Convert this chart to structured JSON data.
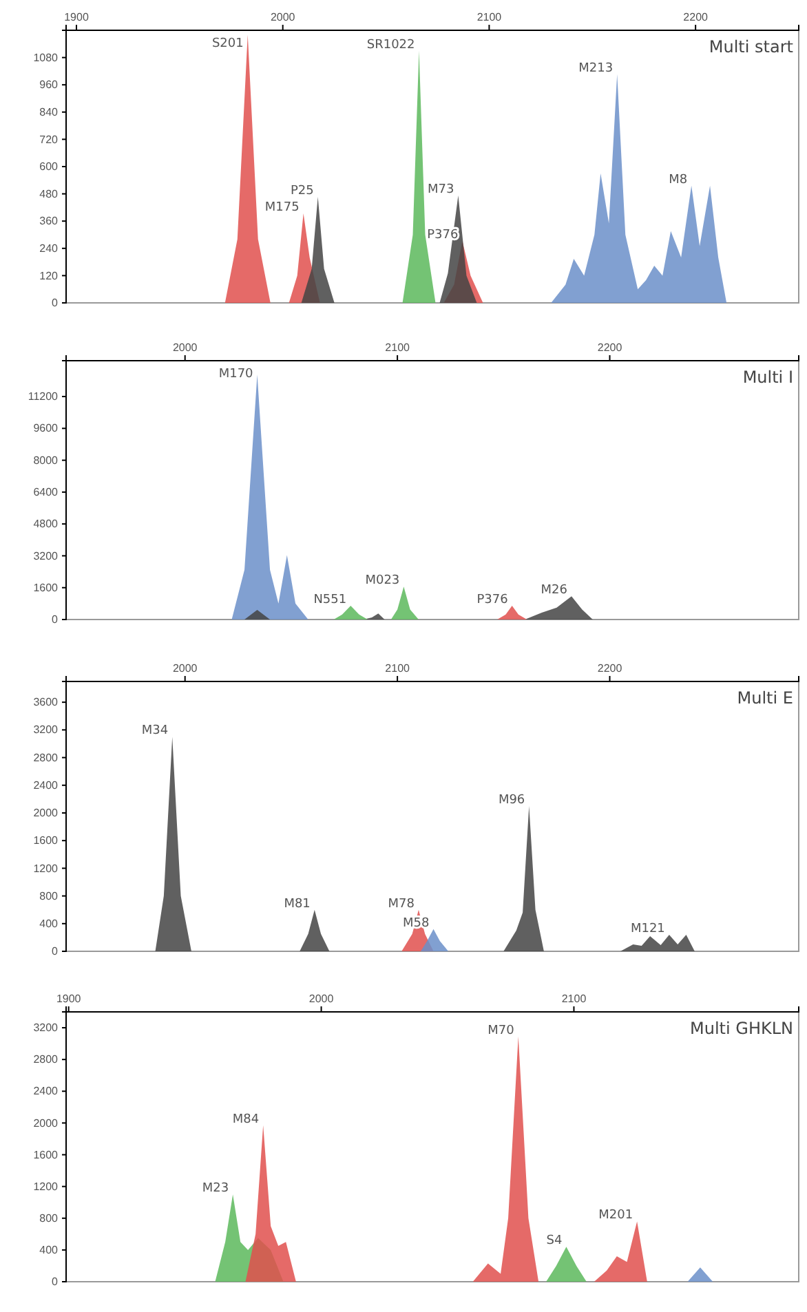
{
  "chart_data": [
    {
      "type": "area",
      "title": "Multi start",
      "xlim": [
        1895,
        2250
      ],
      "xticks": [
        1900,
        2000,
        2100,
        2200
      ],
      "ylim": [
        0,
        1200
      ],
      "yticks": [
        0,
        120,
        240,
        360,
        480,
        600,
        720,
        840,
        960,
        1080
      ],
      "series": [
        {
          "color": "#e0504e",
          "x": [
            1895,
            1972,
            1978,
            1983,
            1988,
            1994,
            2003,
            2007,
            2010,
            2013,
            2018,
            2078,
            2083,
            2087,
            2091,
            2097,
            2250
          ],
          "values": [
            0,
            0,
            280,
            1180,
            280,
            0,
            0,
            120,
            394,
            200,
            0,
            0,
            80,
            273,
            120,
            0,
            0
          ]
        },
        {
          "color": "#444444",
          "x": [
            1895,
            2009,
            2014,
            2017,
            2020,
            2025,
            2076,
            2080,
            2085,
            2089,
            2094,
            2250
          ],
          "values": [
            0,
            0,
            150,
            467,
            150,
            0,
            0,
            130,
            473,
            120,
            0,
            0
          ]
        },
        {
          "color": "#5cb85c",
          "x": [
            1895,
            2058,
            2063,
            2066,
            2069,
            2074,
            2250
          ],
          "values": [
            0,
            0,
            300,
            1110,
            300,
            0,
            0
          ]
        },
        {
          "color": "#6b8fc9",
          "x": [
            1895,
            2130,
            2137,
            2141,
            2146,
            2151,
            2154,
            2158,
            2162,
            2166,
            2172,
            2176,
            2180,
            2184,
            2188,
            2193,
            2198,
            2202,
            2207,
            2211,
            2215,
            2250
          ],
          "values": [
            0,
            0,
            80,
            194,
            120,
            300,
            570,
            350,
            1007,
            300,
            60,
            100,
            164,
            120,
            316,
            200,
            516,
            250,
            516,
            200,
            0,
            0
          ]
        }
      ],
      "annotations": [
        {
          "text": "S201",
          "x": 1983,
          "y": 1180
        },
        {
          "text": "M175",
          "x": 2010,
          "y": 394
        },
        {
          "text": "P25",
          "x": 2017,
          "y": 467
        },
        {
          "text": "SR1022",
          "x": 2066,
          "y": 1110
        },
        {
          "text": "M73",
          "x": 2085,
          "y": 473
        },
        {
          "text": "P376",
          "x": 2087,
          "y": 273
        },
        {
          "text": "M213",
          "x": 2162,
          "y": 1007
        },
        {
          "text": "M8",
          "x": 2198,
          "y": 516
        }
      ]
    },
    {
      "type": "area",
      "title": "Multi I",
      "xlim": [
        1944,
        2289
      ],
      "xticks": [
        2000,
        2100,
        2200
      ],
      "ylim": [
        0,
        13000
      ],
      "yticks": [
        0,
        1600,
        3200,
        4800,
        6400,
        8000,
        9600,
        11200
      ],
      "series": [
        {
          "color": "#6b8fc9",
          "x": [
            1944,
            2022,
            2028,
            2034,
            2040,
            2044,
            2048,
            2052,
            2058,
            2289
          ],
          "values": [
            0,
            0,
            2500,
            12300,
            2500,
            800,
            3230,
            800,
            0,
            0
          ]
        },
        {
          "color": "#444444",
          "x": [
            1944,
            2028,
            2034,
            2040,
            2084,
            2088,
            2091,
            2094,
            2160,
            2168,
            2175,
            2182,
            2187,
            2192,
            2289
          ],
          "values": [
            0,
            0,
            480,
            0,
            0,
            100,
            300,
            0,
            0,
            350,
            600,
            1170,
            500,
            0,
            0
          ]
        },
        {
          "color": "#5cb85c",
          "x": [
            1944,
            2070,
            2074,
            2078,
            2082,
            2086,
            2097,
            2100,
            2103,
            2106,
            2110,
            2289
          ],
          "values": [
            0,
            0,
            250,
            690,
            250,
            0,
            0,
            500,
            1650,
            500,
            0,
            0
          ]
        },
        {
          "color": "#e0504e",
          "x": [
            1944,
            2147,
            2151,
            2154,
            2157,
            2161,
            2289
          ],
          "values": [
            0,
            0,
            250,
            690,
            250,
            0,
            0
          ]
        }
      ],
      "annotations": [
        {
          "text": "M170",
          "x": 2034,
          "y": 12300
        },
        {
          "text": "N551",
          "x": 2078,
          "y": 690
        },
        {
          "text": "M023",
          "x": 2103,
          "y": 1650
        },
        {
          "text": "P376",
          "x": 2154,
          "y": 690
        },
        {
          "text": "M26",
          "x": 2182,
          "y": 1170
        }
      ]
    },
    {
      "type": "area",
      "title": "Multi E",
      "xlim": [
        1944,
        2289
      ],
      "xticks": [
        2000,
        2100,
        2200
      ],
      "ylim": [
        0,
        3900
      ],
      "yticks": [
        0,
        400,
        800,
        1200,
        1600,
        2000,
        2400,
        2800,
        3200,
        3600
      ],
      "series": [
        {
          "color": "#444444",
          "x": [
            1944,
            1986,
            1990,
            1994,
            1998,
            2003,
            2054,
            2058,
            2061,
            2064,
            2068,
            2150,
            2156,
            2159,
            2162,
            2165,
            2169,
            2205,
            2211,
            2215,
            2219,
            2224,
            2228,
            2232,
            2236,
            2240,
            2289
          ],
          "values": [
            0,
            0,
            800,
            3100,
            800,
            0,
            0,
            250,
            600,
            250,
            0,
            0,
            300,
            560,
            2100,
            600,
            0,
            0,
            100,
            80,
            220,
            90,
            240,
            100,
            240,
            0,
            0
          ]
        },
        {
          "color": "#e0504e",
          "x": [
            1944,
            2102,
            2107,
            2110,
            2113,
            2117,
            2289
          ],
          "values": [
            0,
            0,
            250,
            600,
            250,
            0,
            0
          ]
        },
        {
          "color": "#6b8fc9",
          "x": [
            1944,
            2111,
            2114,
            2117,
            2120,
            2124,
            2289
          ],
          "values": [
            0,
            0,
            150,
            320,
            150,
            0,
            0
          ]
        }
      ],
      "annotations": [
        {
          "text": "M34",
          "x": 1994,
          "y": 3100
        },
        {
          "text": "M81",
          "x": 2061,
          "y": 600
        },
        {
          "text": "M78",
          "x": 2110,
          "y": 600
        },
        {
          "text": "M58",
          "x": 2117,
          "y": 320
        },
        {
          "text": "M96",
          "x": 2162,
          "y": 2100
        },
        {
          "text": "M121",
          "x": 2228,
          "y": 240
        }
      ]
    },
    {
      "type": "area",
      "title": "Multi GHKLN",
      "xlim": [
        1899,
        2189
      ],
      "xticks": [
        1900,
        2000,
        2100
      ],
      "ylim": [
        0,
        3400
      ],
      "yticks": [
        0,
        400,
        800,
        1200,
        1600,
        2000,
        2400,
        2800,
        3200
      ],
      "series": [
        {
          "color": "#5cb85c",
          "x": [
            1899,
            1958,
            1962,
            1965,
            1968,
            1971,
            1975,
            1980,
            1985,
            2089,
            2093,
            2097,
            2101,
            2105,
            2189
          ],
          "values": [
            0,
            0,
            500,
            1100,
            500,
            400,
            550,
            400,
            0,
            0,
            200,
            440,
            200,
            0,
            0
          ]
        },
        {
          "color": "#e0504e",
          "x": [
            1899,
            1970,
            1974,
            1977,
            1980,
            1983,
            1986,
            1990,
            2060,
            2066,
            2071,
            2074,
            2078,
            2082,
            2086,
            2108,
            2113,
            2117,
            2121,
            2125,
            2129,
            2189
          ],
          "values": [
            0,
            0,
            600,
            1970,
            700,
            450,
            500,
            0,
            0,
            230,
            100,
            800,
            3090,
            800,
            0,
            0,
            140,
            320,
            250,
            760,
            0,
            0
          ]
        },
        {
          "color": "#6b8fc9",
          "x": [
            1899,
            2145,
            2150,
            2155,
            2189
          ],
          "values": [
            0,
            0,
            180,
            0,
            0
          ]
        }
      ],
      "annotations": [
        {
          "text": "M23",
          "x": 1965,
          "y": 1100
        },
        {
          "text": "M84",
          "x": 1977,
          "y": 1970
        },
        {
          "text": "M70",
          "x": 2078,
          "y": 3090
        },
        {
          "text": "S4",
          "x": 2097,
          "y": 440
        },
        {
          "text": "M201",
          "x": 2125,
          "y": 760
        }
      ]
    }
  ]
}
